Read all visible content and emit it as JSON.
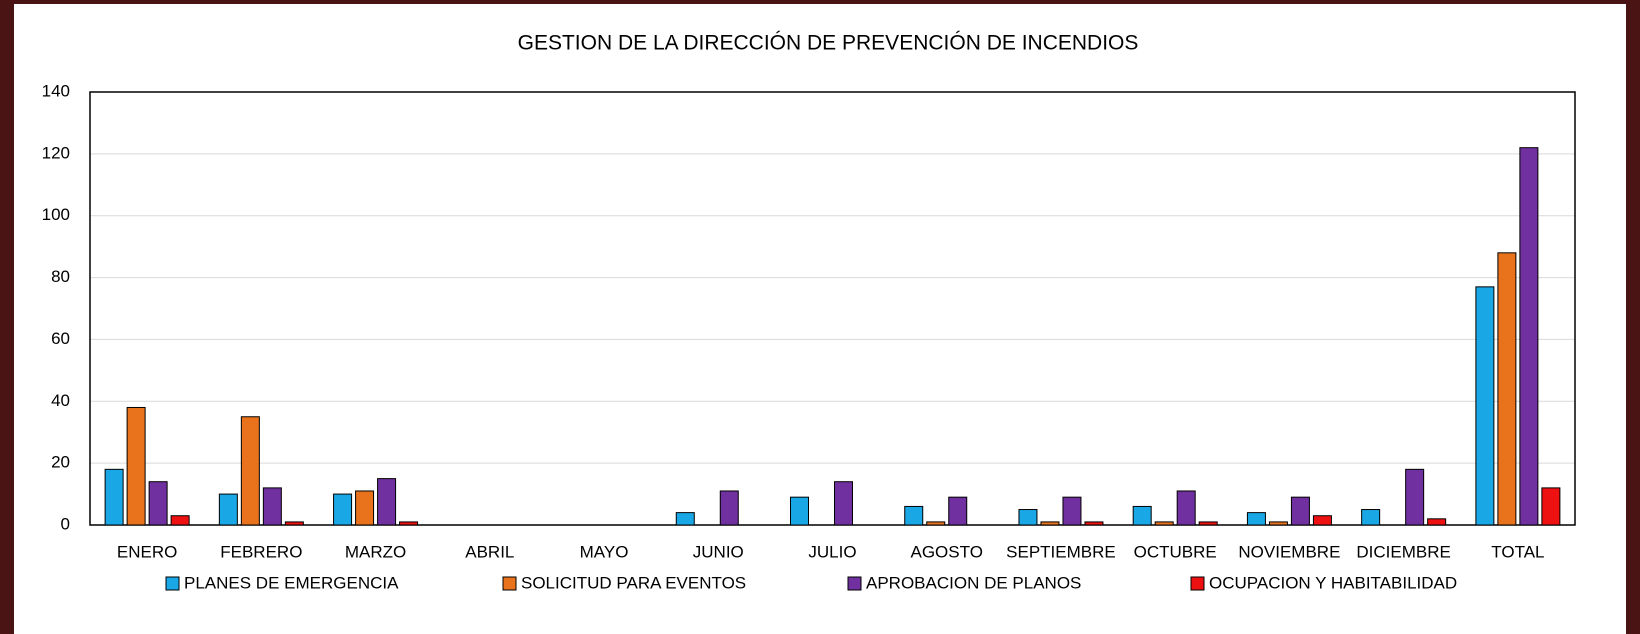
{
  "chart_data": {
    "type": "bar",
    "title": "GESTION DE LA DIRECCIÓN DE PREVENCIÓN DE INCENDIOS",
    "categories": [
      "ENERO",
      "FEBRERO",
      "MARZO",
      "ABRIL",
      "MAYO",
      "JUNIO",
      "JULIO",
      "AGOSTO",
      "SEPTIEMBRE",
      "OCTUBRE",
      "NOVIEMBRE",
      "DICIEMBRE",
      "TOTAL"
    ],
    "series": [
      {
        "name": "PLANES DE EMERGENCIA",
        "color": "#1aa7e6",
        "values": [
          18,
          10,
          10,
          0,
          0,
          4,
          9,
          6,
          5,
          6,
          4,
          5,
          77
        ]
      },
      {
        "name": "SOLICITUD PARA EVENTOS",
        "color": "#e8731c",
        "values": [
          38,
          35,
          11,
          0,
          0,
          0,
          0,
          1,
          1,
          1,
          1,
          0,
          88
        ]
      },
      {
        "name": "APROBACION DE PLANOS",
        "color": "#7030a0",
        "values": [
          14,
          12,
          15,
          0,
          0,
          11,
          14,
          9,
          9,
          11,
          9,
          18,
          122
        ]
      },
      {
        "name": "OCUPACION Y HABITABILIDAD",
        "color": "#ee1111",
        "values": [
          3,
          1,
          1,
          0,
          0,
          0,
          0,
          0,
          1,
          1,
          3,
          2,
          12
        ]
      }
    ],
    "ylim": [
      0,
      140
    ],
    "yticks": [
      0,
      20,
      40,
      60,
      80,
      100,
      120,
      140
    ],
    "grid": true,
    "legend": "bottom"
  }
}
